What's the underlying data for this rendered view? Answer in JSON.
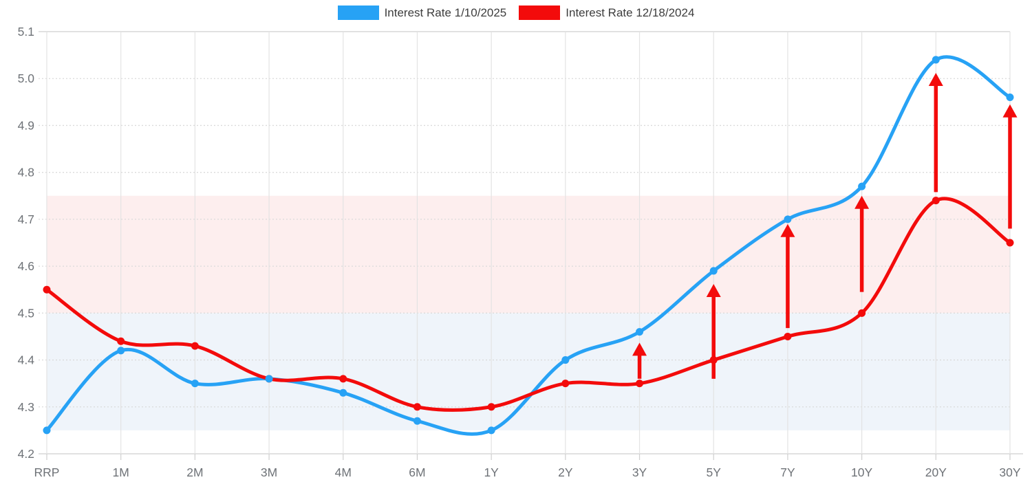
{
  "chart_data": {
    "type": "line",
    "title": "",
    "xlabel": "",
    "ylabel": "",
    "categories": [
      "RRP",
      "1M",
      "2M",
      "3M",
      "4M",
      "6M",
      "1Y",
      "2Y",
      "3Y",
      "5Y",
      "7Y",
      "10Y",
      "20Y",
      "30Y"
    ],
    "series": [
      {
        "name": "Interest Rate 1/10/2025",
        "color": "#27A2F5",
        "values": [
          4.25,
          4.42,
          4.35,
          4.36,
          4.33,
          4.27,
          4.25,
          4.4,
          4.46,
          4.59,
          4.7,
          4.77,
          5.04,
          4.96
        ]
      },
      {
        "name": "Interest Rate 12/18/2024",
        "color": "#F30B0B",
        "values": [
          4.55,
          4.44,
          4.43,
          4.36,
          4.36,
          4.3,
          4.3,
          4.35,
          4.35,
          4.4,
          4.45,
          4.5,
          4.74,
          4.65
        ]
      }
    ],
    "ylim": [
      4.2,
      5.1
    ],
    "yticks": [
      5.1,
      5.0,
      4.9,
      4.8,
      4.7,
      4.6,
      4.5,
      4.4,
      4.3,
      4.2
    ],
    "ytick_labels": [
      "5.1",
      "5.0",
      "4.9",
      "4.8",
      "4.7",
      "4.6",
      "4.5",
      "4.4",
      "4.3",
      "4.2"
    ],
    "bands": [
      {
        "from": 4.5,
        "to": 4.75,
        "color": "#FDEEEE",
        "name": "upper-pink-band"
      },
      {
        "from": 4.25,
        "to": 4.5,
        "color": "#EFF4FA",
        "name": "lower-blue-band"
      }
    ],
    "arrows": {
      "color": "#F30B0B",
      "items": [
        {
          "category": "3Y",
          "from": 4.36,
          "to": 4.437
        },
        {
          "category": "5Y",
          "from": 4.36,
          "to": 4.562
        },
        {
          "category": "7Y",
          "from": 4.468,
          "to": 4.69
        },
        {
          "category": "10Y",
          "from": 4.545,
          "to": 4.75
        },
        {
          "category": "20Y",
          "from": 4.758,
          "to": 5.012
        },
        {
          "category": "30Y",
          "from": 4.68,
          "to": 4.945
        }
      ]
    },
    "grid": true,
    "legend_position": "top"
  }
}
